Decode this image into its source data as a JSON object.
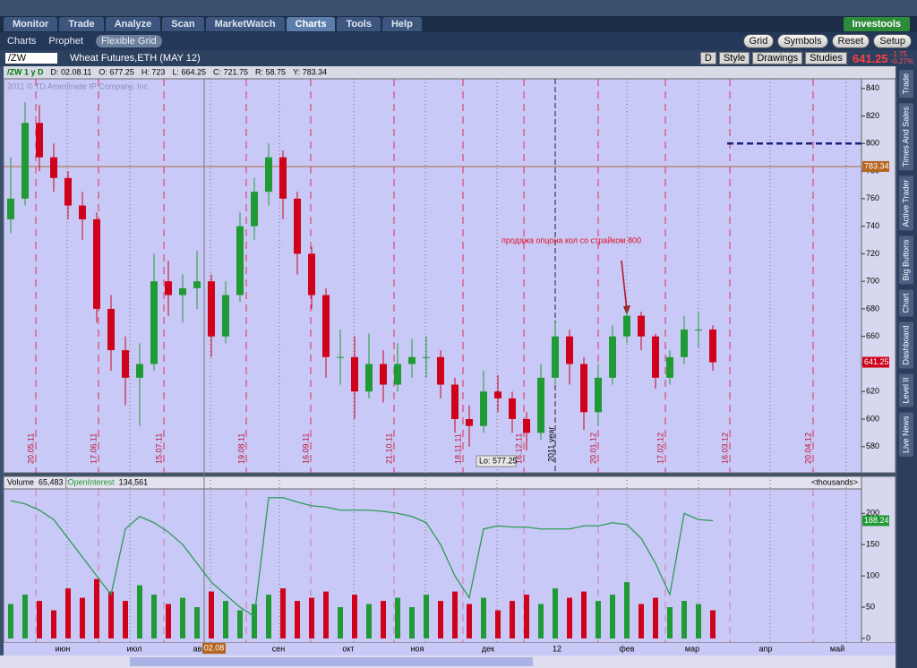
{
  "tabs": [
    "Monitor",
    "Trade",
    "Analyze",
    "Scan",
    "MarketWatch",
    "Charts",
    "Tools",
    "Help"
  ],
  "brand": "Investools",
  "subtabs": [
    "Charts",
    "Prophet",
    "Flexible Grid"
  ],
  "toolbar_buttons": [
    "Grid",
    "Symbols",
    "Reset",
    "Setup"
  ],
  "symbol": "/ZW",
  "description": "Wheat Futures,ETH (MAY 12)",
  "chart_tools": [
    "D",
    "Style",
    "Drawings",
    "Studies"
  ],
  "last_price": "641.25",
  "change": "-1.75",
  "change_pct": "-0.27%",
  "side_tabs": [
    "Trade",
    "Times And Sales",
    "Active Trader",
    "Big Buttons",
    "Chart",
    "Dashboard",
    "Level II",
    "Live News"
  ],
  "chart_data": {
    "type": "candlestick",
    "header": [
      "/ZW 1 y D",
      "D: 02.08.11",
      "O: 677.25",
      "H: 723",
      "L: 664.25",
      "C: 721.75",
      "R: 58.75",
      "Y: 783.34"
    ],
    "watermark": "2011 © TD Ameritrade IP Company, Inc.",
    "ohlc": [
      [
        745,
        790,
        735,
        760
      ],
      [
        760,
        830,
        755,
        815
      ],
      [
        815,
        828,
        780,
        790
      ],
      [
        790,
        800,
        765,
        775
      ],
      [
        775,
        780,
        745,
        755
      ],
      [
        755,
        765,
        730,
        745
      ],
      [
        745,
        750,
        670,
        680
      ],
      [
        680,
        690,
        635,
        650
      ],
      [
        650,
        660,
        610,
        630
      ],
      [
        630,
        655,
        595,
        640
      ],
      [
        640,
        720,
        635,
        700
      ],
      [
        700,
        715,
        675,
        690
      ],
      [
        690,
        705,
        670,
        695
      ],
      [
        695,
        722,
        680,
        700
      ],
      [
        700,
        705,
        645,
        660
      ],
      [
        660,
        700,
        655,
        690
      ],
      [
        690,
        750,
        685,
        740
      ],
      [
        740,
        775,
        730,
        765
      ],
      [
        765,
        800,
        755,
        790
      ],
      [
        790,
        795,
        745,
        760
      ],
      [
        760,
        765,
        705,
        720
      ],
      [
        720,
        725,
        680,
        690
      ],
      [
        690,
        695,
        630,
        645
      ],
      [
        645,
        665,
        625,
        645
      ],
      [
        645,
        660,
        600,
        620
      ],
      [
        620,
        662,
        615,
        640
      ],
      [
        640,
        650,
        612,
        625
      ],
      [
        625,
        655,
        620,
        640
      ],
      [
        640,
        658,
        630,
        645
      ],
      [
        645,
        660,
        630,
        645
      ],
      [
        645,
        650,
        615,
        625
      ],
      [
        625,
        630,
        590,
        600
      ],
      [
        600,
        610,
        580,
        595
      ],
      [
        595,
        635,
        590,
        620
      ],
      [
        620,
        632,
        605,
        615
      ],
      [
        615,
        620,
        590,
        600
      ],
      [
        600,
        605,
        577.25,
        590
      ],
      [
        590,
        640,
        585,
        630
      ],
      [
        630,
        670,
        625,
        660
      ],
      [
        660,
        665,
        625,
        640
      ],
      [
        640,
        645,
        592,
        605
      ],
      [
        605,
        640,
        595,
        630
      ],
      [
        630,
        668,
        625,
        660
      ],
      [
        660,
        682,
        655,
        675
      ],
      [
        675,
        678,
        650,
        660
      ],
      [
        660,
        662,
        622,
        630
      ],
      [
        630,
        650,
        625,
        645
      ],
      [
        645,
        675,
        640,
        665
      ],
      [
        665,
        678,
        652,
        665
      ],
      [
        665,
        668,
        635,
        641.25
      ]
    ],
    "ylim": [
      561,
      847
    ],
    "yticks": [
      580,
      600,
      620,
      640,
      660,
      680,
      700,
      720,
      740,
      760,
      780,
      800,
      820,
      840
    ],
    "date_lines": [
      "20.05.11",
      "17.06.11",
      "15.07.11",
      "19.08.11",
      "16.09.11",
      "21.10.11",
      "18.11.11",
      "16.12.11",
      "20.01.12",
      "17.02.12",
      "16.03.12",
      "20.04.12"
    ],
    "year_label": "2011 year",
    "annotation": "продажа опцона кол со страйком 800",
    "strike_line": 800,
    "reference_line": 783.34,
    "low_label": "Lo: 577.25",
    "xaxis_labels": [
      "июн",
      "июл",
      "авг",
      "сен",
      "окт",
      "ноя",
      "дек",
      "12",
      "фев",
      "мар",
      "апр",
      "май"
    ],
    "cursor_label": "02.08",
    "volume_panel": {
      "header": [
        "Volume",
        "65,483",
        "OpenInterest",
        "134,561"
      ],
      "units": "<thousands>",
      "volume": [
        55,
        70,
        60,
        45,
        80,
        65,
        95,
        75,
        60,
        85,
        70,
        55,
        65,
        50,
        75,
        60,
        45,
        55,
        70,
        80,
        60,
        65,
        75,
        50,
        70,
        55,
        60,
        65,
        50,
        70,
        60,
        75,
        55,
        65,
        45,
        60,
        70,
        55,
        80,
        65,
        75,
        60,
        70,
        90,
        55,
        65,
        50,
        60,
        55,
        45
      ],
      "open_interest": [
        220,
        215,
        205,
        190,
        160,
        130,
        100,
        70,
        175,
        195,
        185,
        170,
        150,
        120,
        90,
        70,
        50,
        35,
        225,
        225,
        218,
        212,
        210,
        205,
        205,
        205,
        203,
        200,
        195,
        185,
        150,
        100,
        65,
        175,
        180,
        178,
        178,
        175,
        175,
        175,
        180,
        180,
        185,
        182,
        160,
        120,
        70,
        200,
        190,
        188.24
      ],
      "ylim": [
        0,
        239
      ],
      "yticks": [
        0,
        50,
        100,
        150,
        200
      ]
    }
  }
}
